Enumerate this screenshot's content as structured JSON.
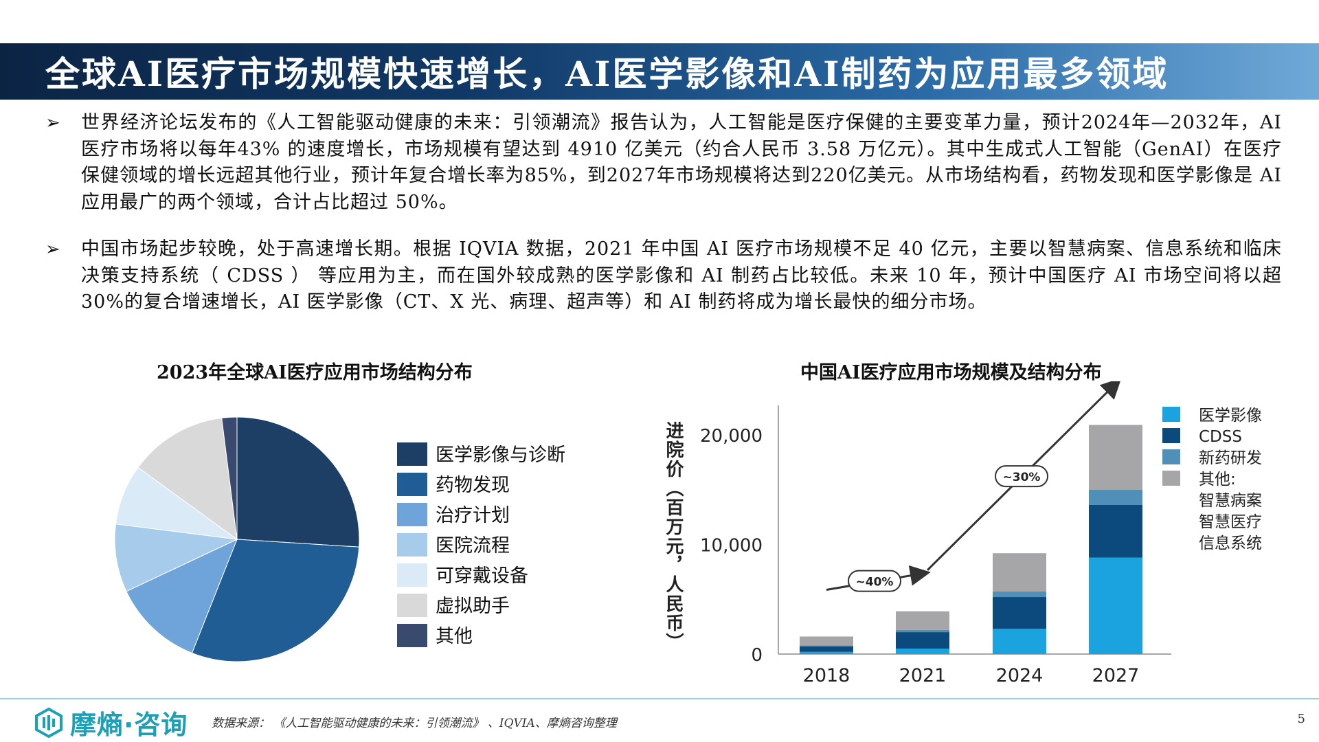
{
  "header": {
    "title": "全球AI医疗市场规模快速增长，AI医学影像和AI制药为应用最多领域"
  },
  "bullets": [
    {
      "icon": "arrow-bullet-icon",
      "text": "世界经济论坛发布的《人工智能驱动健康的未来：引领潮流》报告认为，人工智能是医疗保健的主要变革力量，预计2024年—2032年，AI 医疗市场将以每年43% 的速度增长，市场规模有望达到 4910 亿美元（约合人民币 3.58 万亿元）。其中生成式人工智能（GenAI）在医疗保健领域的增长远超其他行业，预计年复合增长率为85%，到2027年市场规模将达到220亿美元。从市场结构看，药物发现和医学影像是 AI 应用最广的两个领域，合计占比超过 50%。"
    },
    {
      "icon": "arrow-bullet-icon",
      "text": "中国市场起步较晚，处于高速增长期。根据 IQVIA 数据，2021 年中国 AI 医疗市场规模不足 40 亿元，主要以智慧病案、信息系统和临床决策支持系统（ CDSS ） 等应用为主，而在国外较成熟的医学影像和 AI 制药占比较低。未来 10 年，预计中国医疗 AI 市场空间将以超 30%的复合增速增长，AI 医学影像（CT、X 光、病理、超声等）和 AI 制药将成为增长最快的细分市场。"
    }
  ],
  "chart_data": [
    {
      "type": "pie",
      "title": "2023年全球AI医疗应用市场结构分布",
      "slices": [
        {
          "label": "医学影像与诊断",
          "value": 26,
          "color": "#1d3f66"
        },
        {
          "label": "药物发现",
          "value": 30,
          "color": "#1f5d94"
        },
        {
          "label": "治疗计划",
          "value": 12,
          "color": "#6ea4d9"
        },
        {
          "label": "医院流程",
          "value": 9,
          "color": "#a7cbea"
        },
        {
          "label": "可穿戴设备",
          "value": 8,
          "color": "#dbeaf7"
        },
        {
          "label": "虚拟助手",
          "value": 13,
          "color": "#d9d9d9"
        },
        {
          "label": "其他",
          "value": 2,
          "color": "#3a4a6e"
        }
      ]
    },
    {
      "type": "bar",
      "stacked": true,
      "title": "中国AI医疗应用市场规模及结构分布",
      "ylabel": "进院价（百万元，人民币）",
      "ylim": [
        0,
        23000
      ],
      "yticks": [
        "0",
        "10,000",
        "20,000"
      ],
      "ytick_values": [
        0,
        10000,
        20000
      ],
      "categories": [
        "2018",
        "2021",
        "2024",
        "2027"
      ],
      "series": [
        {
          "name": "医学影像",
          "color": "#1aa3df",
          "values": [
            200,
            500,
            2300,
            8800
          ]
        },
        {
          "name": "CDSS",
          "color": "#0c4a7e",
          "values": [
            500,
            1500,
            2900,
            4800
          ]
        },
        {
          "name": "新药研发",
          "color": "#4f8fb8",
          "values": [
            100,
            200,
            500,
            1400
          ]
        },
        {
          "name": "其他：智慧病案 智慧医疗信息系统",
          "color": "#a6a6a8",
          "values": [
            800,
            1700,
            3500,
            5900
          ]
        }
      ],
      "legend": [
        {
          "label": "医学影像",
          "color": "#1aa3df"
        },
        {
          "label": "CDSS",
          "color": "#0c4a7e"
        },
        {
          "label": "新药研发",
          "color": "#4f8fb8"
        },
        {
          "label": "其他:",
          "color": "#a6a6a8"
        },
        {
          "label": "智慧病案",
          "color": ""
        },
        {
          "label": "智慧医疗",
          "color": ""
        },
        {
          "label": "信息系统",
          "color": ""
        }
      ],
      "annotations": [
        {
          "label": "~40%"
        },
        {
          "label": "~30%"
        }
      ],
      "legend_position": "right"
    }
  ],
  "footer": {
    "logo_text": "摩熵·咨询",
    "logo_icon": "moshang-logo-icon",
    "source": "数据来源：  《人工智能驱动健康的未来：引领潮流》 、IQVIA、摩熵咨询整理",
    "page": "5"
  }
}
